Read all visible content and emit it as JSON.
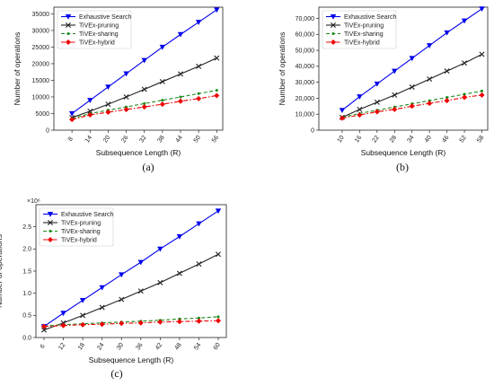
{
  "chart_data": [
    {
      "type": "line",
      "panel_label": "(a)",
      "xlabel": "Subsequence Length (R)",
      "ylabel": "Number of operations",
      "x": [
        8,
        14,
        20,
        26,
        32,
        38,
        44,
        50,
        56
      ],
      "xlim": [
        2,
        58
      ],
      "ylim": [
        0,
        37000
      ],
      "yticks": [
        0,
        5000,
        10000,
        15000,
        20000,
        25000,
        30000,
        35000
      ],
      "ytick_labels": [
        "0",
        "5000",
        "10000",
        "15000",
        "20000",
        "25000",
        "30000",
        "35000"
      ],
      "y_offset_text": "",
      "legend_position": "top-left",
      "series": [
        {
          "name": "Exhaustive Search",
          "color": "#0000ee",
          "style": "solid",
          "marker": "triangle-down",
          "values": [
            5000,
            9000,
            13000,
            17000,
            21000,
            25000,
            28800,
            32500,
            36200
          ]
        },
        {
          "name": "TiVEx-pruning",
          "color": "#222222",
          "style": "solid",
          "marker": "x",
          "values": [
            3800,
            5700,
            7800,
            10000,
            12300,
            14600,
            16900,
            19200,
            21700
          ]
        },
        {
          "name": "TiVEx-sharing",
          "color": "#1a8a1a",
          "style": "dashed",
          "marker": "dot",
          "values": [
            3500,
            5000,
            6000,
            7000,
            8000,
            9000,
            10000,
            11000,
            12000
          ]
        },
        {
          "name": "TiVEx-hybrid",
          "color": "#ee0000",
          "style": "dashdot",
          "marker": "diamond",
          "values": [
            3200,
            4600,
            5400,
            6200,
            7000,
            7800,
            8700,
            9500,
            10400
          ]
        }
      ]
    },
    {
      "type": "line",
      "panel_label": "(b)",
      "xlabel": "Subsequence Length (R)",
      "ylabel": "Number of operations",
      "x": [
        10,
        16,
        22,
        28,
        34,
        40,
        46,
        52,
        58
      ],
      "xlim": [
        2,
        60
      ],
      "ylim": [
        0,
        77000
      ],
      "yticks": [
        0,
        10000,
        20000,
        30000,
        40000,
        50000,
        60000,
        70000
      ],
      "ytick_labels": [
        "0",
        "10,000",
        "20,000",
        "30,000",
        "40,000",
        "50,000",
        "60,000",
        "70,000"
      ],
      "y_offset_text": "",
      "legend_position": "top-left",
      "series": [
        {
          "name": "Exhaustive Search",
          "color": "#0000ee",
          "style": "solid",
          "marker": "triangle-down",
          "values": [
            12500,
            21000,
            29000,
            37000,
            45000,
            53000,
            61000,
            68500,
            76000
          ]
        },
        {
          "name": "TiVEx-pruning",
          "color": "#222222",
          "style": "solid",
          "marker": "x",
          "values": [
            8000,
            13000,
            17500,
            22000,
            27000,
            32000,
            37000,
            42000,
            47500
          ]
        },
        {
          "name": "TiVEx-sharing",
          "color": "#1a8a1a",
          "style": "dashed",
          "marker": "dot",
          "values": [
            8000,
            10500,
            12500,
            14500,
            16500,
            18500,
            20500,
            22500,
            24500
          ]
        },
        {
          "name": "TiVEx-hybrid",
          "color": "#ee0000",
          "style": "dashdot",
          "marker": "diamond",
          "values": [
            7500,
            9500,
            11500,
            13000,
            15000,
            16800,
            18500,
            20500,
            22000
          ]
        }
      ]
    },
    {
      "type": "line",
      "panel_label": "(c)",
      "xlabel": "Subsequence Length (R)",
      "ylabel": "Number of operations",
      "x": [
        6,
        12,
        18,
        24,
        30,
        36,
        42,
        48,
        54,
        60
      ],
      "xlim": [
        3.5,
        62.5
      ],
      "ylim": [
        0,
        3.0
      ],
      "yticks": [
        0,
        0.5,
        1.0,
        1.5,
        2.0,
        2.5
      ],
      "ytick_labels": [
        "0.0",
        "0.5",
        "1.0",
        "1.5",
        "2.0",
        "2.5"
      ],
      "y_offset_text": "×10⁶",
      "legend_position": "top-left",
      "series": [
        {
          "name": "Exhaustive Search",
          "color": "#0000ee",
          "style": "solid",
          "marker": "triangle-down",
          "values": [
            0.25,
            0.55,
            0.84,
            1.13,
            1.42,
            1.7,
            2.0,
            2.28,
            2.57,
            2.86
          ]
        },
        {
          "name": "TiVEx-pruning",
          "color": "#222222",
          "style": "solid",
          "marker": "x",
          "values": [
            0.17,
            0.33,
            0.5,
            0.68,
            0.86,
            1.05,
            1.24,
            1.45,
            1.66,
            1.88
          ]
        },
        {
          "name": "TiVEx-sharing",
          "color": "#1a8a1a",
          "style": "dashed",
          "marker": "dot",
          "values": [
            0.26,
            0.29,
            0.31,
            0.33,
            0.35,
            0.37,
            0.39,
            0.42,
            0.44,
            0.47
          ]
        },
        {
          "name": "TiVEx-hybrid",
          "color": "#ee0000",
          "style": "dashdot",
          "marker": "diamond",
          "values": [
            0.25,
            0.27,
            0.29,
            0.3,
            0.32,
            0.33,
            0.35,
            0.36,
            0.37,
            0.38
          ]
        }
      ]
    }
  ]
}
